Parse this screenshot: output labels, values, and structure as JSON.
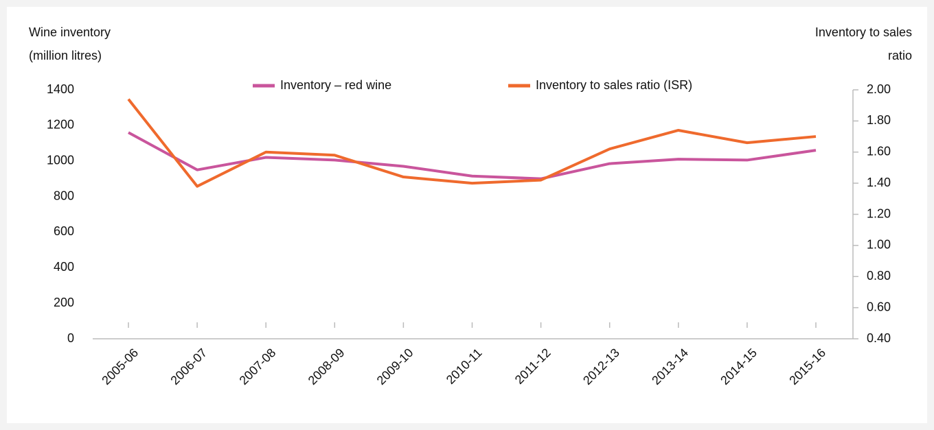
{
  "chart_data": {
    "type": "line",
    "y_label": [
      "Wine inventory",
      "(million litres)"
    ],
    "y2_label": [
      "Inventory to sales",
      "ratio"
    ],
    "categories": [
      "2005-06",
      "2006-07",
      "2007-08",
      "2008-09",
      "2009-10",
      "2010-11",
      "2011-12",
      "2012-13",
      "2013-14",
      "2014-15",
      "2015-16"
    ],
    "series": [
      {
        "name": "Inventory – red wine",
        "color": "#c9559c",
        "values": [
          1160,
          950,
          1020,
          1005,
          970,
          915,
          900,
          985,
          1010,
          1005,
          1060
        ]
      },
      {
        "name": "Inventory to sales ratio (ISR)",
        "color": "#ef6a2d",
        "axis": "y2",
        "values": [
          1.94,
          1.38,
          1.6,
          1.58,
          1.44,
          1.4,
          1.42,
          1.62,
          1.74,
          1.66,
          1.7
        ]
      }
    ],
    "ylim": [
      0,
      1400
    ],
    "yticks": [
      0,
      200,
      400,
      600,
      800,
      1000,
      1200,
      1400
    ],
    "y2lim": [
      0.4,
      2.0
    ],
    "y2ticks": [
      {
        "value": 0.4,
        "label": "0.40"
      },
      {
        "value": 0.6,
        "label": "0.60"
      },
      {
        "value": 0.8,
        "label": "0.80"
      },
      {
        "value": 1.0,
        "label": "1.00"
      },
      {
        "value": 1.2,
        "label": "1.20"
      },
      {
        "value": 1.4,
        "label": "1.40"
      },
      {
        "value": 1.6,
        "label": "1.60"
      },
      {
        "value": 1.8,
        "label": "1.80"
      },
      {
        "value": 2.0,
        "label": "2.00"
      }
    ],
    "legend": "top",
    "grid": false
  }
}
